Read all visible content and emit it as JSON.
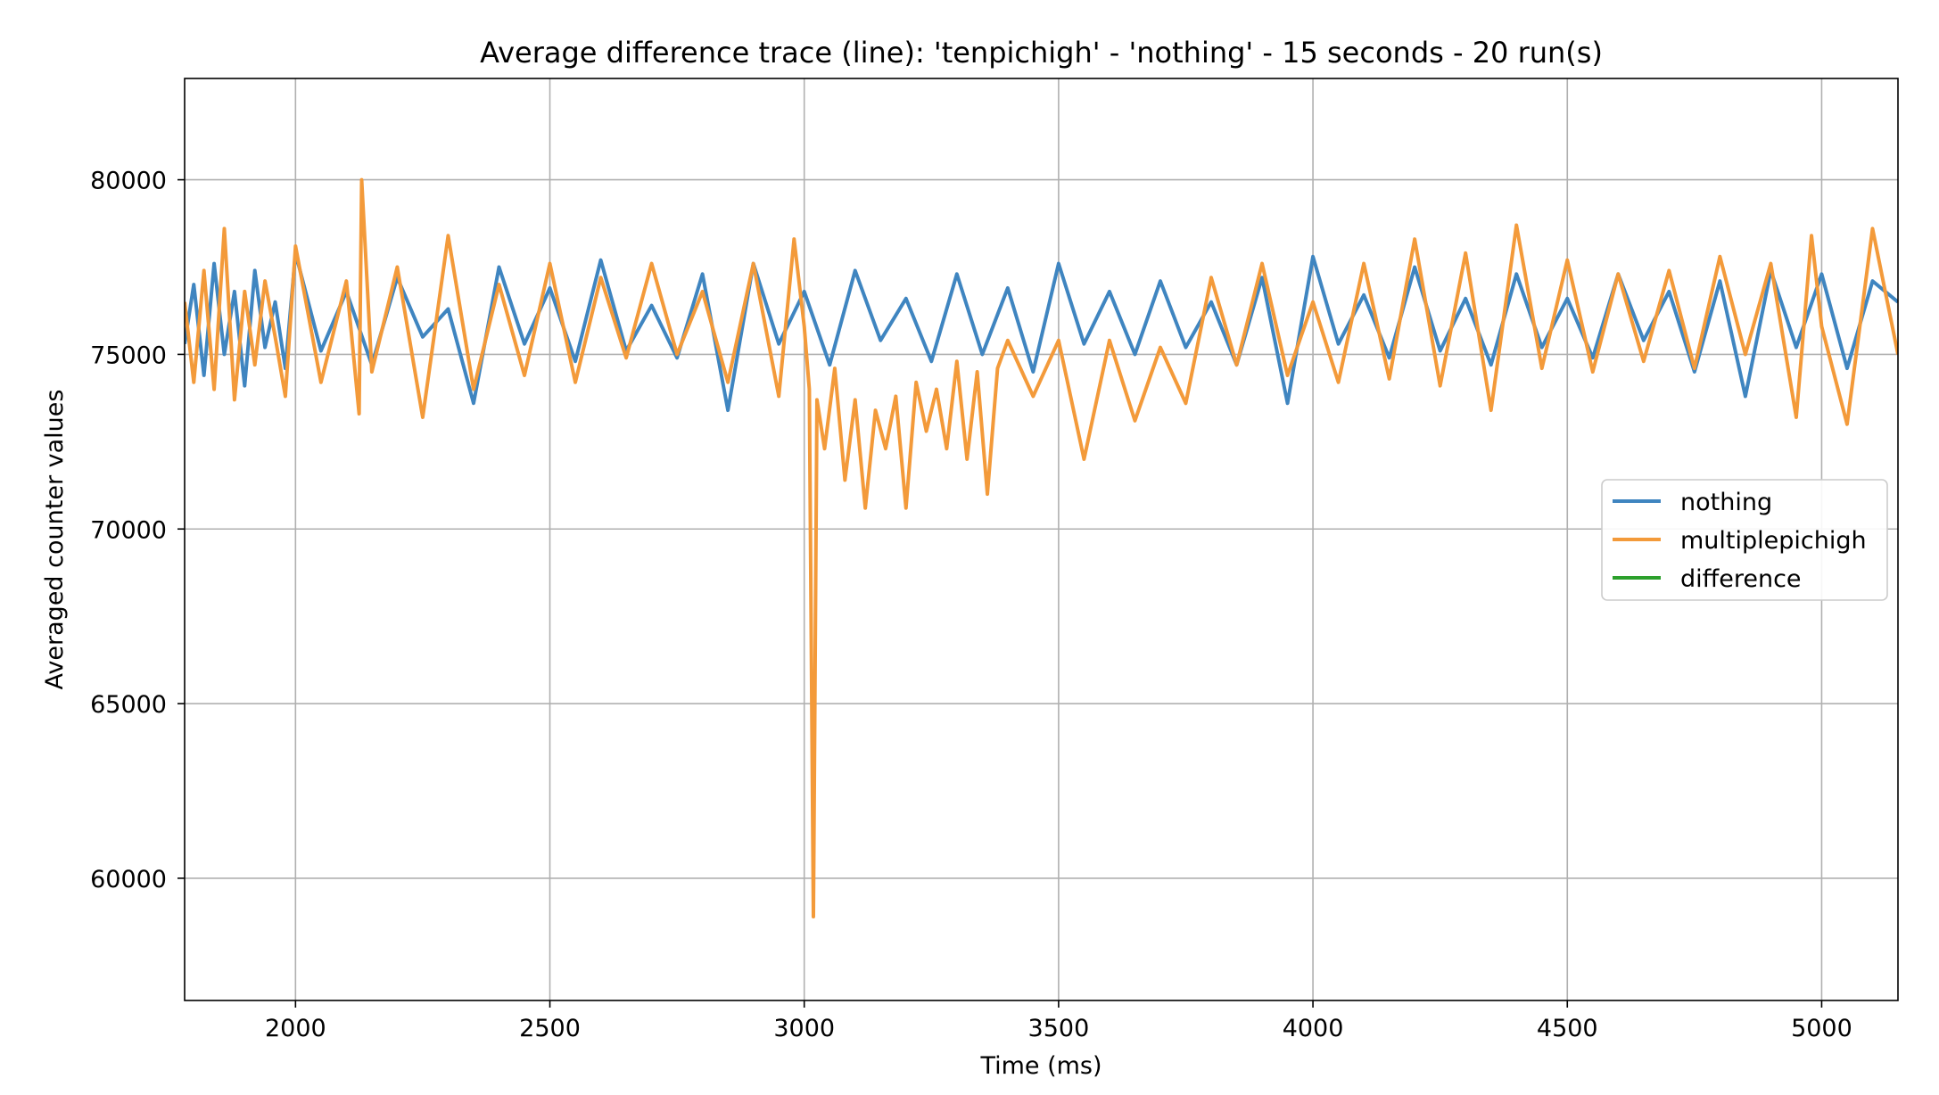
{
  "chart_data": {
    "type": "line",
    "title": "Average difference trace (line): 'tenpichigh' - 'nothing' - 15 seconds - 20 run(s)",
    "xlabel": "Time (ms)",
    "ylabel": "Averaged counter values",
    "xlim": [
      1782,
      5150
    ],
    "ylim": [
      56500,
      82900
    ],
    "x_ticks": [
      2000,
      2500,
      3000,
      3500,
      4000,
      4500,
      5000
    ],
    "y_ticks": [
      60000,
      65000,
      70000,
      75000,
      80000
    ],
    "grid": true,
    "legend_position": "center-right",
    "series": [
      {
        "name": "nothing",
        "color": "#3f85c0",
        "x": [
          1782,
          1800,
          1820,
          1840,
          1860,
          1880,
          1900,
          1920,
          1940,
          1960,
          1980,
          2000,
          2050,
          2100,
          2150,
          2200,
          2250,
          2300,
          2350,
          2400,
          2450,
          2500,
          2550,
          2600,
          2650,
          2700,
          2750,
          2800,
          2850,
          2900,
          2950,
          3000,
          3050,
          3100,
          3150,
          3200,
          3250,
          3300,
          3350,
          3400,
          3450,
          3500,
          3550,
          3600,
          3650,
          3700,
          3750,
          3800,
          3850,
          3900,
          3950,
          4000,
          4050,
          4100,
          4150,
          4200,
          4250,
          4300,
          4350,
          4400,
          4450,
          4500,
          4550,
          4600,
          4650,
          4700,
          4750,
          4800,
          4850,
          4900,
          4950,
          5000,
          5050,
          5100,
          5150
        ],
        "y": [
          75300,
          77000,
          74400,
          77600,
          75000,
          76800,
          74100,
          77400,
          75200,
          76500,
          74600,
          77900,
          75100,
          76800,
          74700,
          77200,
          75500,
          76300,
          73600,
          77500,
          75300,
          76900,
          74800,
          77700,
          75100,
          76400,
          74900,
          77300,
          73400,
          77600,
          75300,
          76800,
          74700,
          77400,
          75400,
          76600,
          74800,
          77300,
          75000,
          76900,
          74500,
          77600,
          75300,
          76800,
          75000,
          77100,
          75200,
          76500,
          74700,
          77200,
          73600,
          77800,
          75300,
          76700,
          74900,
          77500,
          75100,
          76600,
          74700,
          77300,
          75200,
          76600,
          74900,
          77300,
          75400,
          76800,
          74500,
          77100,
          73800,
          77400,
          75200,
          77300,
          74600,
          77100,
          76500
        ]
      },
      {
        "name": "multiplepichigh",
        "color": "#f39a3a",
        "x": [
          1782,
          1800,
          1820,
          1840,
          1860,
          1880,
          1900,
          1920,
          1940,
          1960,
          1980,
          2000,
          2050,
          2100,
          2125,
          2130,
          2150,
          2200,
          2250,
          2300,
          2350,
          2400,
          2450,
          2500,
          2550,
          2600,
          2650,
          2700,
          2750,
          2800,
          2850,
          2900,
          2950,
          2980,
          3000,
          3010,
          3018,
          3025,
          3040,
          3060,
          3080,
          3100,
          3120,
          3140,
          3160,
          3180,
          3200,
          3220,
          3240,
          3260,
          3280,
          3300,
          3320,
          3340,
          3360,
          3380,
          3400,
          3450,
          3500,
          3550,
          3600,
          3650,
          3700,
          3750,
          3800,
          3850,
          3900,
          3950,
          4000,
          4050,
          4100,
          4150,
          4200,
          4250,
          4300,
          4350,
          4400,
          4450,
          4500,
          4550,
          4600,
          4650,
          4700,
          4750,
          4800,
          4850,
          4900,
          4950,
          4980,
          5000,
          5050,
          5100,
          5150
        ],
        "y": [
          76500,
          74200,
          77400,
          74000,
          78600,
          73700,
          76800,
          74700,
          77100,
          75500,
          73800,
          78100,
          74200,
          77100,
          73300,
          80000,
          74500,
          77500,
          73200,
          78400,
          74000,
          77000,
          74400,
          77600,
          74200,
          77200,
          74900,
          77600,
          75000,
          76800,
          74200,
          77600,
          73800,
          78300,
          75800,
          74000,
          58900,
          73700,
          72300,
          74600,
          71400,
          73700,
          70600,
          73400,
          72300,
          73800,
          70600,
          74200,
          72800,
          74000,
          72300,
          74800,
          72000,
          74500,
          71000,
          74600,
          75400,
          73800,
          75400,
          72000,
          75400,
          73100,
          75200,
          73600,
          77200,
          74700,
          77600,
          74400,
          76500,
          74200,
          77600,
          74300,
          78300,
          74100,
          77900,
          73400,
          78700,
          74600,
          77700,
          74500,
          77300,
          74800,
          77400,
          74600,
          77800,
          75000,
          77600,
          73200,
          78400,
          75800,
          73000,
          78600,
          75000
        ]
      },
      {
        "name": "difference",
        "color": "#2ca02c",
        "x": [],
        "y": []
      }
    ]
  }
}
